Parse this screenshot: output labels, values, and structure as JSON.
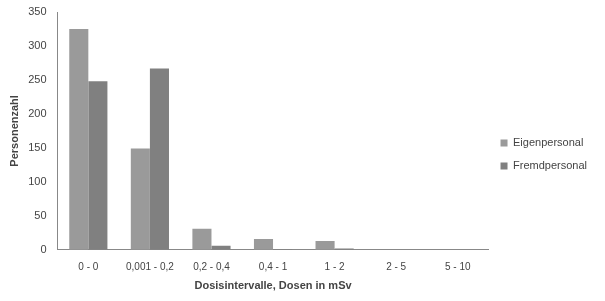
{
  "chart_data": {
    "type": "bar",
    "x_label": "Dosisintervalle, Dosen in mSv",
    "y_label": "Personenzahl",
    "categories": [
      "0 - 0",
      "0,001 - 0,2",
      "0,2 - 0,4",
      "0,4 - 1",
      "1 - 2",
      "2 - 5",
      "5 - 10"
    ],
    "series": [
      {
        "name": "Eigenpersonal",
        "color": "#9a9a9a",
        "values": [
          325,
          149,
          31,
          16,
          13,
          0,
          0
        ]
      },
      {
        "name": "Fremdpersonal",
        "color": "#808080",
        "values": [
          248,
          267,
          6,
          1,
          2,
          0,
          0
        ]
      }
    ],
    "ylim": [
      0,
      350
    ],
    "yticks": [
      0,
      50,
      100,
      150,
      200,
      250,
      300,
      350
    ],
    "grid": false,
    "legend": "right"
  }
}
